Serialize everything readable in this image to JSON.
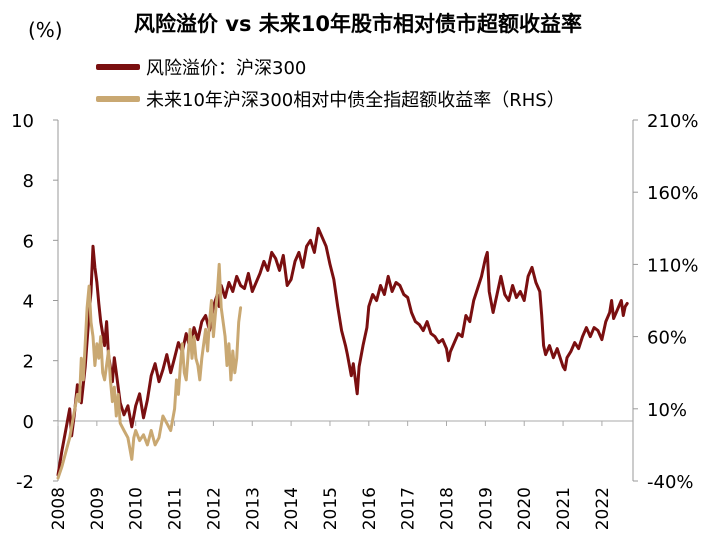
{
  "chart_data": {
    "type": "line",
    "title": "风险溢价 vs 未来10年股市相对债市超额收益率",
    "y_unit_label": "(%)",
    "left_axis": {
      "ylim": [
        -2,
        10
      ],
      "ticks": [
        "-2",
        "0",
        "2",
        "4",
        "6",
        "8",
        "10"
      ]
    },
    "right_axis": {
      "ylim": [
        -40,
        210
      ],
      "ticks": [
        "-40%",
        "10%",
        "60%",
        "110%",
        "160%",
        "210%"
      ]
    },
    "x_axis": {
      "xlim": [
        2008,
        2022.8
      ],
      "ticks": [
        "2008",
        "2009",
        "2010",
        "2011",
        "2012",
        "2013",
        "2014",
        "2015",
        "2016",
        "2017",
        "2018",
        "2019",
        "2020",
        "2021",
        "2022"
      ]
    },
    "series": [
      {
        "name": "风险溢价：沪深300",
        "axis": "left",
        "color": "#7a0f10",
        "points": [
          [
            2008.0,
            -1.8
          ],
          [
            2008.1,
            -1.0
          ],
          [
            2008.2,
            -0.3
          ],
          [
            2008.3,
            0.4
          ],
          [
            2008.35,
            -0.5
          ],
          [
            2008.42,
            0.2
          ],
          [
            2008.5,
            1.2
          ],
          [
            2008.6,
            0.6
          ],
          [
            2008.7,
            1.8
          ],
          [
            2008.78,
            3.2
          ],
          [
            2008.85,
            4.3
          ],
          [
            2008.9,
            5.8
          ],
          [
            2008.95,
            5.1
          ],
          [
            2009.0,
            4.6
          ],
          [
            2009.05,
            3.9
          ],
          [
            2009.1,
            3.3
          ],
          [
            2009.2,
            2.5
          ],
          [
            2009.25,
            3.3
          ],
          [
            2009.3,
            2.2
          ],
          [
            2009.4,
            1.3
          ],
          [
            2009.45,
            2.1
          ],
          [
            2009.5,
            1.6
          ],
          [
            2009.6,
            0.6
          ],
          [
            2009.7,
            0.2
          ],
          [
            2009.8,
            0.5
          ],
          [
            2009.9,
            -0.2
          ],
          [
            2010.0,
            0.5
          ],
          [
            2010.1,
            0.9
          ],
          [
            2010.2,
            0.1
          ],
          [
            2010.3,
            0.7
          ],
          [
            2010.4,
            1.5
          ],
          [
            2010.5,
            1.9
          ],
          [
            2010.6,
            1.3
          ],
          [
            2010.7,
            1.7
          ],
          [
            2010.8,
            2.2
          ],
          [
            2010.9,
            1.6
          ],
          [
            2011.0,
            2.1
          ],
          [
            2011.1,
            2.6
          ],
          [
            2011.2,
            2.3
          ],
          [
            2011.3,
            2.9
          ],
          [
            2011.4,
            2.4
          ],
          [
            2011.5,
            3.1
          ],
          [
            2011.6,
            2.7
          ],
          [
            2011.7,
            3.3
          ],
          [
            2011.8,
            3.5
          ],
          [
            2011.9,
            3.0
          ],
          [
            2012.0,
            3.8
          ],
          [
            2012.1,
            4.2
          ],
          [
            2012.15,
            3.8
          ],
          [
            2012.2,
            4.5
          ],
          [
            2012.3,
            4.1
          ],
          [
            2012.4,
            4.6
          ],
          [
            2012.5,
            4.3
          ],
          [
            2012.6,
            4.8
          ],
          [
            2012.7,
            4.5
          ],
          [
            2012.8,
            4.4
          ],
          [
            2012.9,
            4.9
          ],
          [
            2013.0,
            4.3
          ],
          [
            2013.1,
            4.6
          ],
          [
            2013.2,
            4.9
          ],
          [
            2013.3,
            5.3
          ],
          [
            2013.4,
            5.0
          ],
          [
            2013.5,
            5.6
          ],
          [
            2013.6,
            5.4
          ],
          [
            2013.7,
            5.0
          ],
          [
            2013.8,
            5.5
          ],
          [
            2013.9,
            4.5
          ],
          [
            2014.0,
            4.7
          ],
          [
            2014.1,
            5.3
          ],
          [
            2014.2,
            5.6
          ],
          [
            2014.3,
            5.1
          ],
          [
            2014.4,
            5.8
          ],
          [
            2014.5,
            6.0
          ],
          [
            2014.6,
            5.6
          ],
          [
            2014.7,
            6.4
          ],
          [
            2014.8,
            6.1
          ],
          [
            2014.9,
            5.8
          ],
          [
            2015.0,
            5.2
          ],
          [
            2015.1,
            4.7
          ],
          [
            2015.2,
            3.8
          ],
          [
            2015.3,
            3.0
          ],
          [
            2015.4,
            2.5
          ],
          [
            2015.45,
            2.2
          ],
          [
            2015.55,
            1.5
          ],
          [
            2015.6,
            1.9
          ],
          [
            2015.7,
            0.9
          ],
          [
            2015.75,
            1.8
          ],
          [
            2015.85,
            2.5
          ],
          [
            2015.95,
            3.1
          ],
          [
            2016.0,
            3.8
          ],
          [
            2016.1,
            4.2
          ],
          [
            2016.2,
            4.0
          ],
          [
            2016.3,
            4.5
          ],
          [
            2016.4,
            4.2
          ],
          [
            2016.5,
            4.8
          ],
          [
            2016.6,
            4.3
          ],
          [
            2016.7,
            4.6
          ],
          [
            2016.8,
            4.5
          ],
          [
            2016.9,
            4.2
          ],
          [
            2017.0,
            4.1
          ],
          [
            2017.1,
            3.6
          ],
          [
            2017.2,
            3.3
          ],
          [
            2017.3,
            3.2
          ],
          [
            2017.4,
            3.0
          ],
          [
            2017.5,
            3.3
          ],
          [
            2017.6,
            2.9
          ],
          [
            2017.7,
            2.8
          ],
          [
            2017.8,
            2.6
          ],
          [
            2017.9,
            2.7
          ],
          [
            2018.0,
            2.4
          ],
          [
            2018.05,
            2.0
          ],
          [
            2018.1,
            2.3
          ],
          [
            2018.2,
            2.6
          ],
          [
            2018.3,
            2.9
          ],
          [
            2018.4,
            2.8
          ],
          [
            2018.5,
            3.5
          ],
          [
            2018.6,
            3.3
          ],
          [
            2018.7,
            4.0
          ],
          [
            2018.8,
            4.4
          ],
          [
            2018.9,
            4.8
          ],
          [
            2019.0,
            5.4
          ],
          [
            2019.05,
            5.6
          ],
          [
            2019.1,
            4.3
          ],
          [
            2019.2,
            3.6
          ],
          [
            2019.3,
            4.2
          ],
          [
            2019.4,
            4.8
          ],
          [
            2019.5,
            4.2
          ],
          [
            2019.6,
            4.0
          ],
          [
            2019.7,
            4.5
          ],
          [
            2019.8,
            4.1
          ],
          [
            2019.9,
            4.3
          ],
          [
            2020.0,
            4.0
          ],
          [
            2020.1,
            4.8
          ],
          [
            2020.2,
            5.1
          ],
          [
            2020.3,
            4.6
          ],
          [
            2020.4,
            4.3
          ],
          [
            2020.45,
            3.5
          ],
          [
            2020.5,
            2.5
          ],
          [
            2020.55,
            2.2
          ],
          [
            2020.65,
            2.5
          ],
          [
            2020.75,
            2.1
          ],
          [
            2020.85,
            2.4
          ],
          [
            2020.95,
            2.0
          ],
          [
            2021.0,
            1.8
          ],
          [
            2021.05,
            1.7
          ],
          [
            2021.1,
            2.1
          ],
          [
            2021.2,
            2.3
          ],
          [
            2021.3,
            2.6
          ],
          [
            2021.4,
            2.4
          ],
          [
            2021.5,
            2.8
          ],
          [
            2021.6,
            3.1
          ],
          [
            2021.7,
            2.8
          ],
          [
            2021.8,
            3.1
          ],
          [
            2021.9,
            3.0
          ],
          [
            2022.0,
            2.7
          ],
          [
            2022.1,
            3.3
          ],
          [
            2022.2,
            3.6
          ],
          [
            2022.25,
            4.0
          ],
          [
            2022.3,
            3.4
          ],
          [
            2022.4,
            3.7
          ],
          [
            2022.5,
            4.0
          ],
          [
            2022.55,
            3.5
          ],
          [
            2022.6,
            3.8
          ],
          [
            2022.65,
            3.9
          ]
        ]
      },
      {
        "name": "未来10年沪深300相对中债全指超额收益率（RHS）",
        "axis": "right",
        "color": "#c9a872",
        "points": [
          [
            2008.0,
            -38
          ],
          [
            2008.1,
            -30
          ],
          [
            2008.2,
            -20
          ],
          [
            2008.3,
            -10
          ],
          [
            2008.4,
            5
          ],
          [
            2008.5,
            20
          ],
          [
            2008.55,
            15
          ],
          [
            2008.6,
            45
          ],
          [
            2008.65,
            30
          ],
          [
            2008.7,
            55
          ],
          [
            2008.75,
            80
          ],
          [
            2008.8,
            95
          ],
          [
            2008.85,
            70
          ],
          [
            2008.9,
            60
          ],
          [
            2008.95,
            40
          ],
          [
            2009.0,
            55
          ],
          [
            2009.05,
            45
          ],
          [
            2009.1,
            60
          ],
          [
            2009.15,
            35
          ],
          [
            2009.2,
            30
          ],
          [
            2009.3,
            50
          ],
          [
            2009.35,
            30
          ],
          [
            2009.4,
            15
          ],
          [
            2009.45,
            25
          ],
          [
            2009.5,
            5
          ],
          [
            2009.55,
            20
          ],
          [
            2009.6,
            0
          ],
          [
            2009.7,
            -5
          ],
          [
            2009.8,
            -10
          ],
          [
            2009.9,
            -25
          ],
          [
            2009.95,
            -10
          ],
          [
            2010.0,
            -5
          ],
          [
            2010.1,
            -12
          ],
          [
            2010.2,
            -8
          ],
          [
            2010.3,
            -15
          ],
          [
            2010.4,
            -5
          ],
          [
            2010.5,
            -15
          ],
          [
            2010.6,
            -10
          ],
          [
            2010.7,
            5
          ],
          [
            2010.8,
            0
          ],
          [
            2010.9,
            -5
          ],
          [
            2011.0,
            10
          ],
          [
            2011.05,
            30
          ],
          [
            2011.1,
            20
          ],
          [
            2011.15,
            40
          ],
          [
            2011.2,
            55
          ],
          [
            2011.25,
            35
          ],
          [
            2011.3,
            30
          ],
          [
            2011.4,
            65
          ],
          [
            2011.45,
            45
          ],
          [
            2011.5,
            60
          ],
          [
            2011.55,
            45
          ],
          [
            2011.6,
            40
          ],
          [
            2011.65,
            30
          ],
          [
            2011.7,
            45
          ],
          [
            2011.8,
            65
          ],
          [
            2011.85,
            50
          ],
          [
            2011.9,
            70
          ],
          [
            2011.95,
            85
          ],
          [
            2012.0,
            60
          ],
          [
            2012.05,
            75
          ],
          [
            2012.1,
            90
          ],
          [
            2012.15,
            110
          ],
          [
            2012.2,
            80
          ],
          [
            2012.3,
            60
          ],
          [
            2012.35,
            40
          ],
          [
            2012.4,
            55
          ],
          [
            2012.45,
            30
          ],
          [
            2012.5,
            50
          ],
          [
            2012.55,
            35
          ],
          [
            2012.6,
            45
          ],
          [
            2012.65,
            70
          ],
          [
            2012.7,
            80
          ]
        ]
      }
    ],
    "legend": [
      {
        "label": "风险溢价：沪深300",
        "color": "#7a0f10"
      },
      {
        "label": "未来10年沪深300相对中债全指超额收益率（RHS）",
        "color": "#c9a872"
      }
    ]
  }
}
